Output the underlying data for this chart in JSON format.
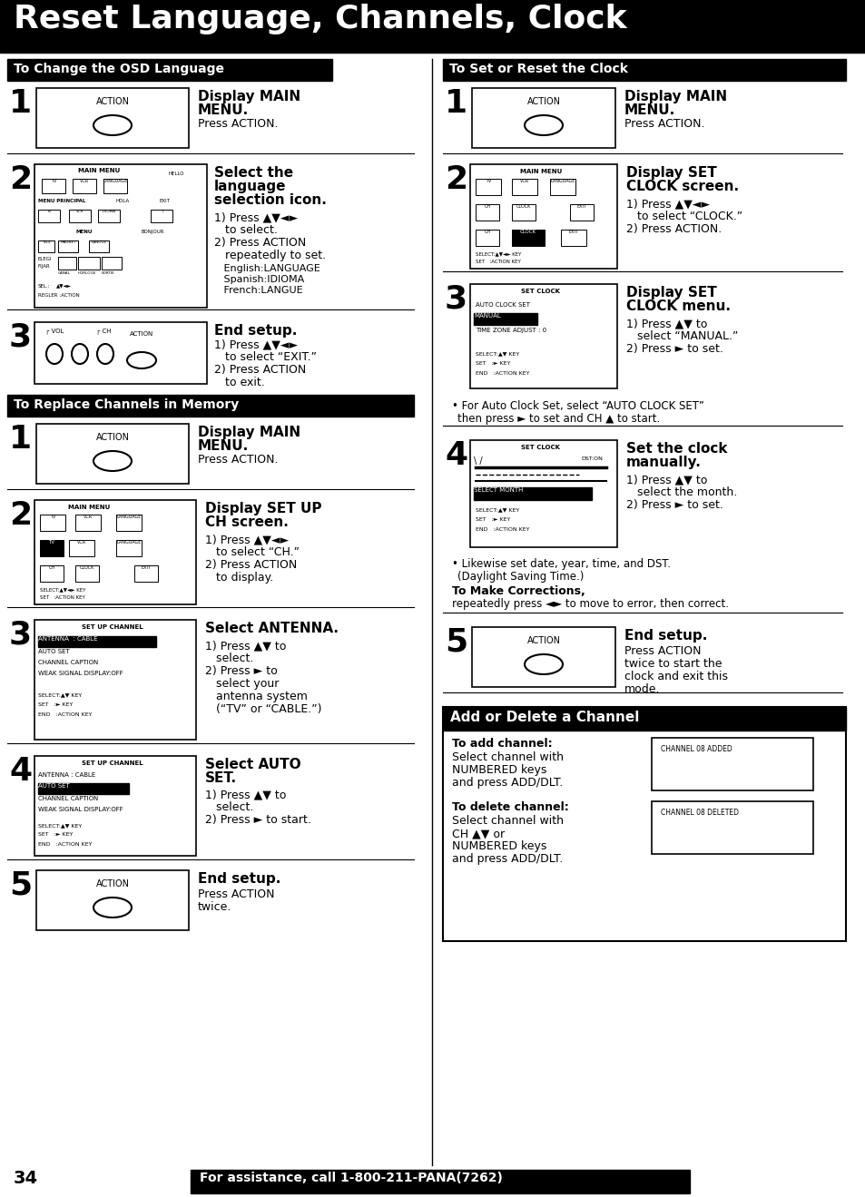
{
  "title": "Reset Language, Channels, Clock",
  "footer_text": "For assistance, call 1-800-211-PANA(7262)",
  "page_number": "34"
}
